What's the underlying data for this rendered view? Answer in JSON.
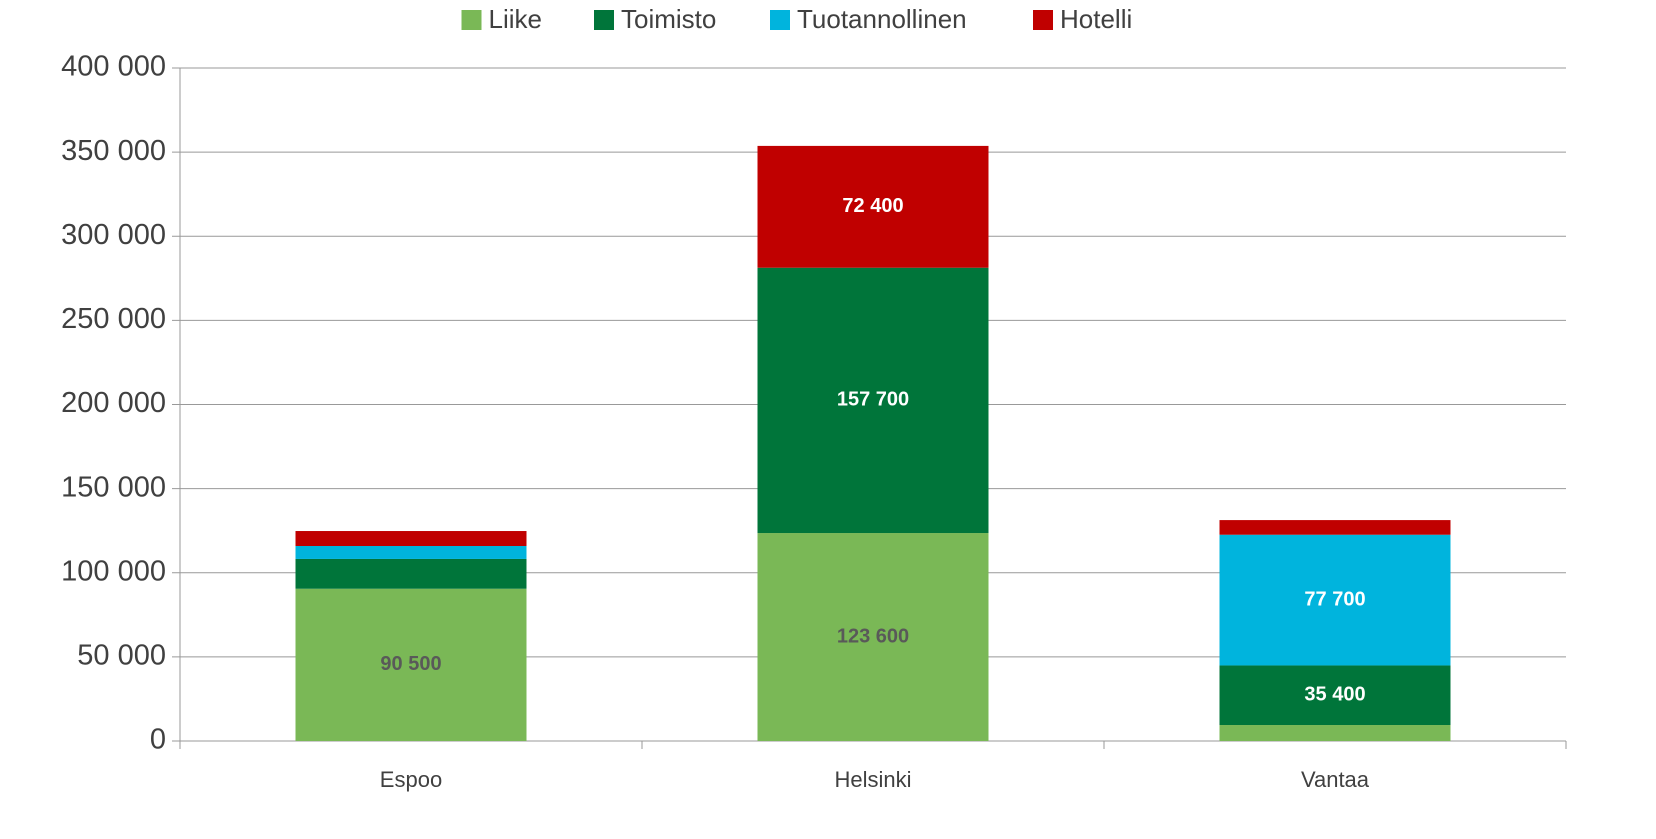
{
  "chart_data": {
    "type": "stacked_bar",
    "categories": [
      "Espoo",
      "Helsinki",
      "Vantaa"
    ],
    "series": [
      {
        "name": "Liike",
        "color": "#7ab856",
        "values": [
          90500,
          123600,
          9500
        ],
        "value_labels": [
          "90 500",
          "123 600",
          null
        ]
      },
      {
        "name": "Toimisto",
        "color": "#00753a",
        "values": [
          17700,
          157700,
          35400
        ],
        "value_labels": [
          null,
          "157 700",
          "35 400"
        ]
      },
      {
        "name": "Tuotannollinen",
        "color": "#00b4dd",
        "values": [
          7700,
          0,
          77700
        ],
        "value_labels": [
          null,
          null,
          "77 700"
        ]
      },
      {
        "name": "Hotelli",
        "color": "#c00000",
        "values": [
          8900,
          72400,
          8700
        ],
        "value_labels": [
          null,
          "72 400",
          null
        ]
      }
    ],
    "ylim": [
      0,
      400000
    ],
    "yticks": [
      0,
      {
        "value": 50000,
        "label": "50 000"
      },
      {
        "value": 100000,
        "label": "100 000"
      },
      {
        "value": 150000,
        "label": "150 000"
      },
      {
        "value": 200000,
        "label": "200 000"
      },
      {
        "value": 250000,
        "label": "250 000"
      },
      {
        "value": 300000,
        "label": "300 000"
      },
      {
        "value": 350000,
        "label": "350 000"
      },
      {
        "value": 400000,
        "label": "400 000"
      }
    ],
    "grid": true,
    "legend": "top"
  }
}
